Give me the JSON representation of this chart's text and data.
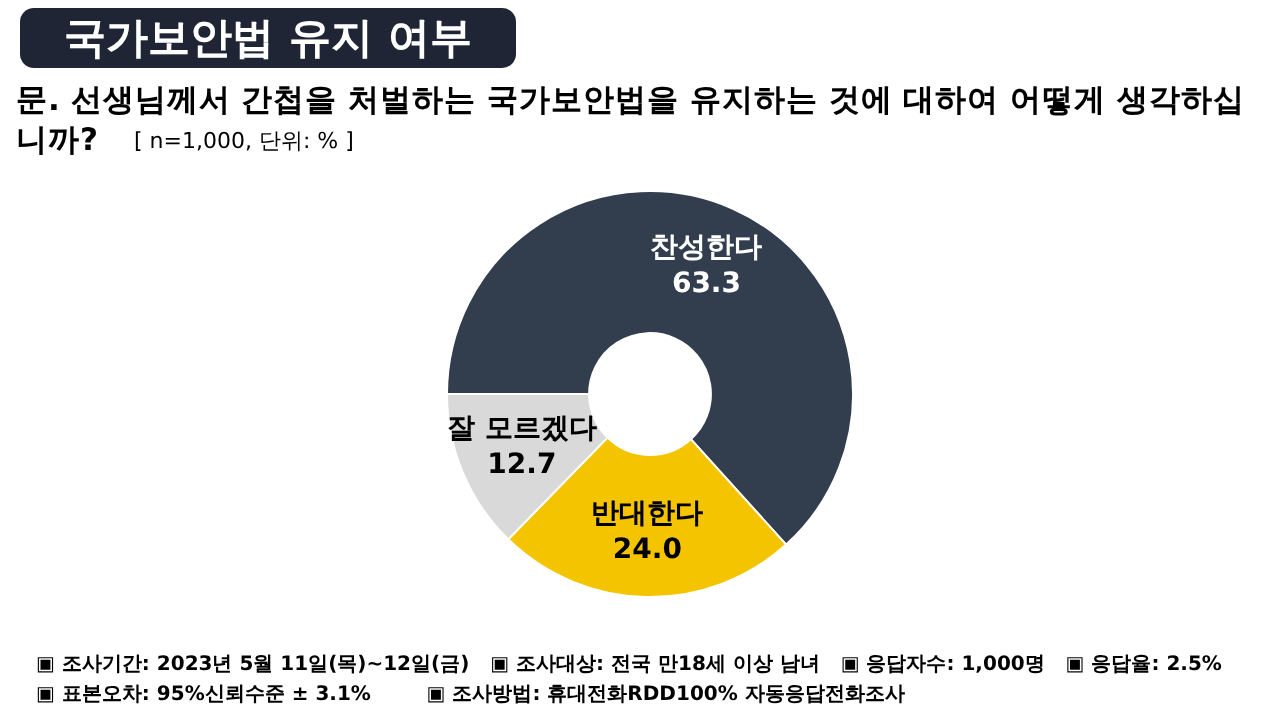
{
  "chart_data": {
    "type": "donut",
    "title": "국가보안법 유지 여부",
    "subtitle": "문. 선생님께서 간첩을 처벌하는 국가보안법을 유지하는 것에 대하여 어떻게 생각하십니까?",
    "categories": [
      "찬성한다",
      "반대한다",
      "잘 모르겠다"
    ],
    "values": [
      63.3,
      24.0,
      12.7
    ],
    "colors": [
      "#323d4e",
      "#f5c400",
      "#d9d9d9"
    ],
    "value_labels": [
      "63.3",
      "24.0",
      "12.7"
    ],
    "annotations": [
      "[ n=1,000, 단위: % ]",
      "▣ 조사기간: 2023년 5월 11일(목)~12일(금)   ▣ 조사대상: 전국 만18세 이상 남녀   ▣ 응답자수: 1,000명   ▣ 응답율: 2.5%",
      "▣ 표본오차: 95%신뢰수준 ± 3.1%        ▣ 조사방법: 휴대전화RDD100% 자동응답전화조사"
    ]
  }
}
